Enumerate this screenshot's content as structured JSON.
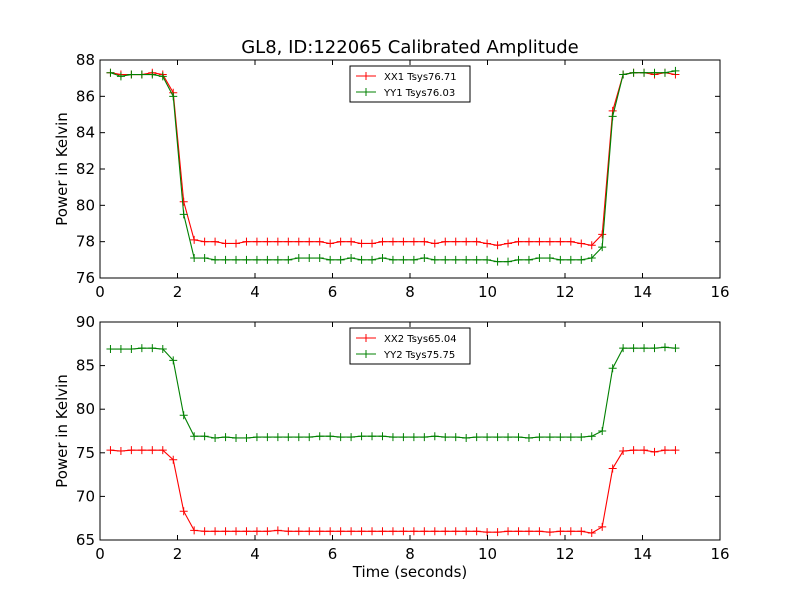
{
  "title": "GL8, ID:122065 Calibrated Amplitude",
  "colors": {
    "red": "#ff0000",
    "green": "#008000"
  },
  "chart_data": [
    {
      "type": "line",
      "ylabel": "Power in Kelvin",
      "xlabel": "",
      "xlim": [
        0,
        16
      ],
      "ylim": [
        76,
        88
      ],
      "xticks": [
        0,
        2,
        4,
        6,
        8,
        10,
        12,
        14,
        16
      ],
      "yticks": [
        76,
        78,
        80,
        82,
        84,
        86,
        88
      ],
      "grid": false,
      "legend_position": "top-center",
      "x": [
        0.27,
        0.54,
        0.81,
        1.08,
        1.35,
        1.62,
        1.89,
        2.16,
        2.43,
        2.7,
        2.97,
        3.24,
        3.51,
        3.78,
        4.05,
        4.32,
        4.59,
        4.86,
        5.13,
        5.4,
        5.67,
        5.94,
        6.21,
        6.48,
        6.75,
        7.02,
        7.29,
        7.56,
        7.83,
        8.1,
        8.37,
        8.64,
        8.91,
        9.18,
        9.45,
        9.72,
        9.99,
        10.26,
        10.53,
        10.8,
        11.07,
        11.34,
        11.61,
        11.88,
        12.15,
        12.42,
        12.69,
        12.96,
        13.23,
        13.5,
        13.77,
        14.04,
        14.31,
        14.58,
        14.85
      ],
      "series": [
        {
          "name": "XX1 Tsys76.71",
          "color": "#ff0000",
          "values": [
            87.3,
            87.2,
            87.2,
            87.2,
            87.3,
            87.2,
            86.2,
            80.2,
            78.1,
            78.0,
            78.0,
            77.9,
            77.9,
            78.0,
            78.0,
            78.0,
            78.0,
            78.0,
            78.0,
            78.0,
            78.0,
            77.9,
            78.0,
            78.0,
            77.9,
            77.9,
            78.0,
            78.0,
            78.0,
            78.0,
            78.0,
            77.9,
            78.0,
            78.0,
            78.0,
            78.0,
            77.9,
            77.8,
            77.9,
            78.0,
            78.0,
            78.0,
            78.0,
            78.0,
            78.0,
            77.9,
            77.8,
            78.4,
            85.2,
            87.2,
            87.3,
            87.3,
            87.2,
            87.3,
            87.2
          ]
        },
        {
          "name": "YY1 Tsys76.03",
          "color": "#008000",
          "values": [
            87.3,
            87.1,
            87.2,
            87.2,
            87.2,
            87.1,
            86.0,
            79.5,
            77.1,
            77.1,
            77.0,
            77.0,
            77.0,
            77.0,
            77.0,
            77.0,
            77.0,
            77.0,
            77.1,
            77.1,
            77.1,
            77.0,
            77.0,
            77.1,
            77.0,
            77.0,
            77.1,
            77.0,
            77.0,
            77.0,
            77.1,
            77.0,
            77.0,
            77.0,
            77.0,
            77.0,
            77.0,
            76.9,
            76.9,
            77.0,
            77.0,
            77.1,
            77.1,
            77.0,
            77.0,
            77.0,
            77.1,
            77.7,
            84.9,
            87.2,
            87.3,
            87.3,
            87.3,
            87.3,
            87.4
          ]
        }
      ]
    },
    {
      "type": "line",
      "ylabel": "Power in Kelvin",
      "xlabel": "Time (seconds)",
      "xlim": [
        0,
        16
      ],
      "ylim": [
        65,
        90
      ],
      "xticks": [
        0,
        2,
        4,
        6,
        8,
        10,
        12,
        14,
        16
      ],
      "yticks": [
        65,
        70,
        75,
        80,
        85,
        90
      ],
      "grid": false,
      "legend_position": "top-center",
      "x": [
        0.27,
        0.54,
        0.81,
        1.08,
        1.35,
        1.62,
        1.89,
        2.16,
        2.43,
        2.7,
        2.97,
        3.24,
        3.51,
        3.78,
        4.05,
        4.32,
        4.59,
        4.86,
        5.13,
        5.4,
        5.67,
        5.94,
        6.21,
        6.48,
        6.75,
        7.02,
        7.29,
        7.56,
        7.83,
        8.1,
        8.37,
        8.64,
        8.91,
        9.18,
        9.45,
        9.72,
        9.99,
        10.26,
        10.53,
        10.8,
        11.07,
        11.34,
        11.61,
        11.88,
        12.15,
        12.42,
        12.69,
        12.96,
        13.23,
        13.5,
        13.77,
        14.04,
        14.31,
        14.58,
        14.85
      ],
      "series": [
        {
          "name": "XX2 Tsys65.04",
          "color": "#ff0000",
          "values": [
            75.3,
            75.2,
            75.3,
            75.3,
            75.3,
            75.3,
            74.2,
            68.3,
            66.1,
            66.0,
            66.0,
            66.0,
            66.0,
            66.0,
            66.0,
            66.0,
            66.1,
            66.0,
            66.0,
            66.0,
            66.0,
            66.0,
            66.0,
            66.0,
            66.0,
            66.0,
            66.0,
            66.0,
            66.0,
            66.0,
            66.0,
            66.0,
            66.0,
            66.0,
            66.0,
            66.0,
            65.9,
            65.9,
            66.0,
            66.0,
            66.0,
            66.0,
            65.9,
            66.0,
            66.0,
            66.0,
            65.8,
            66.5,
            73.2,
            75.2,
            75.3,
            75.3,
            75.1,
            75.3,
            75.3
          ]
        },
        {
          "name": "YY2 Tsys75.75",
          "color": "#008000",
          "values": [
            86.9,
            86.9,
            86.9,
            87.0,
            87.0,
            86.9,
            85.6,
            79.3,
            76.9,
            76.9,
            76.7,
            76.8,
            76.7,
            76.7,
            76.8,
            76.8,
            76.8,
            76.8,
            76.8,
            76.8,
            76.9,
            76.9,
            76.8,
            76.8,
            76.9,
            76.9,
            76.9,
            76.8,
            76.8,
            76.8,
            76.8,
            76.9,
            76.8,
            76.8,
            76.7,
            76.8,
            76.8,
            76.8,
            76.8,
            76.8,
            76.7,
            76.8,
            76.8,
            76.8,
            76.8,
            76.8,
            76.9,
            77.5,
            84.7,
            87.0,
            87.0,
            87.0,
            87.0,
            87.1,
            87.0
          ]
        }
      ]
    }
  ]
}
